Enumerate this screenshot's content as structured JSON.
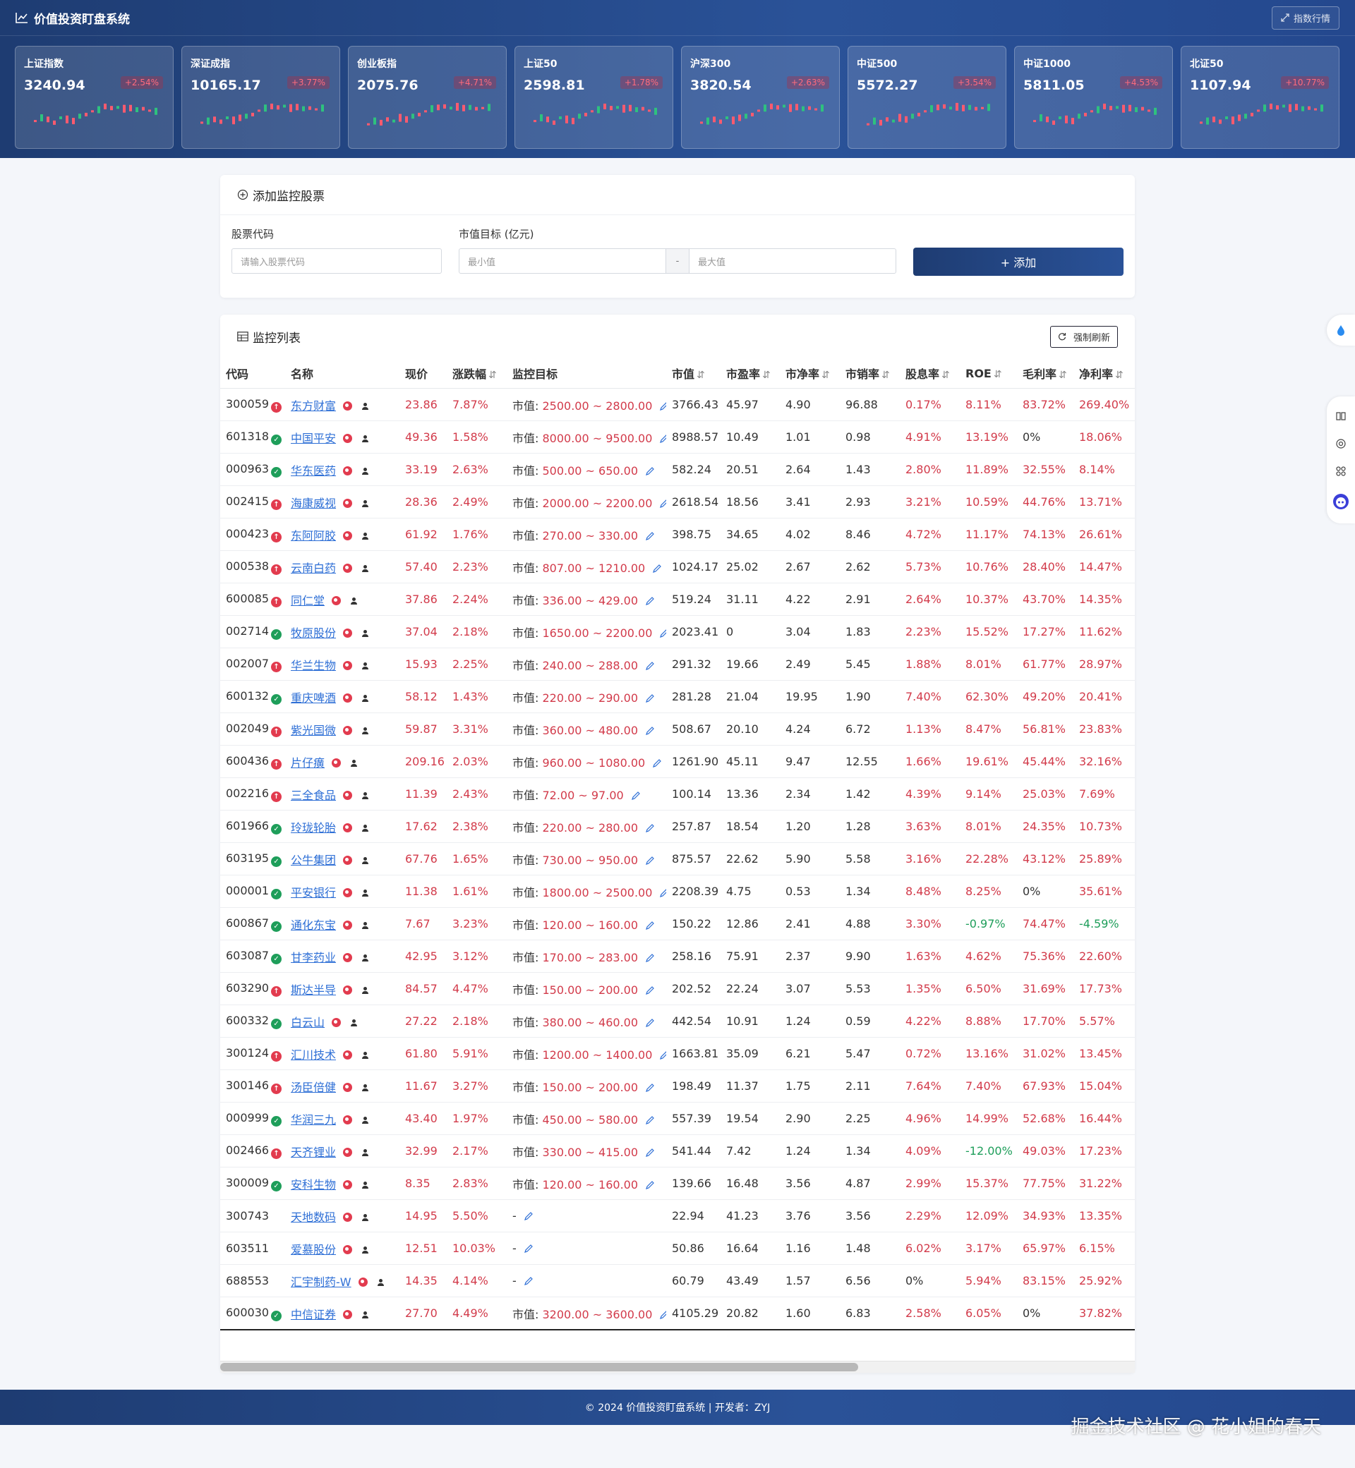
{
  "header": {
    "title": "价值投资盯盘系统",
    "index_button": "指数行情"
  },
  "index_cards": [
    {
      "name": "上证指数",
      "value": "3240.94",
      "change": "+2.54%"
    },
    {
      "name": "深证成指",
      "value": "10165.17",
      "change": "+3.77%"
    },
    {
      "name": "创业板指",
      "value": "2075.76",
      "change": "+4.71%"
    },
    {
      "name": "上证50",
      "value": "2598.81",
      "change": "+1.78%"
    },
    {
      "name": "沪深300",
      "value": "3820.54",
      "change": "+2.63%"
    },
    {
      "name": "中证500",
      "value": "5572.27",
      "change": "+3.54%"
    },
    {
      "name": "中证1000",
      "value": "5811.05",
      "change": "+4.53%"
    },
    {
      "name": "北证50",
      "value": "1107.94",
      "change": "+10.77%"
    }
  ],
  "add_form": {
    "title": "添加监控股票",
    "code_label": "股票代码",
    "code_placeholder": "请输入股票代码",
    "target_label": "市值目标 (亿元)",
    "min_placeholder": "最小值",
    "separator": "-",
    "max_placeholder": "最大值",
    "add_button": "+ 添加"
  },
  "list": {
    "title": "监控列表",
    "refresh_button": "强制刷新",
    "columns": [
      "代码",
      "名称",
      "现价",
      "涨跌幅",
      "监控目标",
      "市值",
      "市盈率",
      "市净率",
      "市销率",
      "股息率",
      "ROE",
      "毛利率",
      "净利率"
    ],
    "target_prefix": "市值: ",
    "rows": [
      {
        "code": "300059",
        "status": "up",
        "name": "东方财富",
        "price": "23.86",
        "change": "7.87%",
        "target": "2500.00 ~ 2800.00",
        "mcap": "3766.43",
        "pe": "45.97",
        "pb": "4.90",
        "ps": "96.88",
        "dy": "0.17%",
        "roe": "8.11%",
        "gm": "83.72%",
        "nm": "269.40%"
      },
      {
        "code": "601318",
        "status": "ok",
        "name": "中国平安",
        "price": "49.36",
        "change": "1.58%",
        "target": "8000.00 ~ 9500.00",
        "mcap": "8988.57",
        "pe": "10.49",
        "pb": "1.01",
        "ps": "0.98",
        "dy": "4.91%",
        "roe": "13.19%",
        "gm": "0%",
        "nm": "18.06%"
      },
      {
        "code": "000963",
        "status": "ok",
        "name": "华东医药",
        "price": "33.19",
        "change": "2.63%",
        "target": "500.00 ~ 650.00",
        "mcap": "582.24",
        "pe": "20.51",
        "pb": "2.64",
        "ps": "1.43",
        "dy": "2.80%",
        "roe": "11.89%",
        "gm": "32.55%",
        "nm": "8.14%"
      },
      {
        "code": "002415",
        "status": "up",
        "name": "海康威视",
        "price": "28.36",
        "change": "2.49%",
        "target": "2000.00 ~ 2200.00",
        "mcap": "2618.54",
        "pe": "18.56",
        "pb": "3.41",
        "ps": "2.93",
        "dy": "3.21%",
        "roe": "10.59%",
        "gm": "44.76%",
        "nm": "13.71%"
      },
      {
        "code": "000423",
        "status": "up",
        "name": "东阿阿胶",
        "price": "61.92",
        "change": "1.76%",
        "target": "270.00 ~ 330.00",
        "mcap": "398.75",
        "pe": "34.65",
        "pb": "4.02",
        "ps": "8.46",
        "dy": "4.72%",
        "roe": "11.17%",
        "gm": "74.13%",
        "nm": "26.61%"
      },
      {
        "code": "000538",
        "status": "up",
        "name": "云南白药",
        "price": "57.40",
        "change": "2.23%",
        "target": "807.00 ~ 1210.00",
        "mcap": "1024.17",
        "pe": "25.02",
        "pb": "2.67",
        "ps": "2.62",
        "dy": "5.73%",
        "roe": "10.76%",
        "gm": "28.40%",
        "nm": "14.47%"
      },
      {
        "code": "600085",
        "status": "up",
        "name": "同仁堂",
        "price": "37.86",
        "change": "2.24%",
        "target": "336.00 ~ 429.00",
        "mcap": "519.24",
        "pe": "31.11",
        "pb": "4.22",
        "ps": "2.91",
        "dy": "2.64%",
        "roe": "10.37%",
        "gm": "43.70%",
        "nm": "14.35%"
      },
      {
        "code": "002714",
        "status": "ok",
        "name": "牧原股份",
        "price": "37.04",
        "change": "2.18%",
        "target": "1650.00 ~ 2200.00",
        "mcap": "2023.41",
        "pe": "0",
        "pb": "3.04",
        "ps": "1.83",
        "dy": "2.23%",
        "roe": "15.52%",
        "gm": "17.27%",
        "nm": "11.62%"
      },
      {
        "code": "002007",
        "status": "up",
        "name": "华兰生物",
        "price": "15.93",
        "change": "2.25%",
        "target": "240.00 ~ 288.00",
        "mcap": "291.32",
        "pe": "19.66",
        "pb": "2.49",
        "ps": "5.45",
        "dy": "1.88%",
        "roe": "8.01%",
        "gm": "61.77%",
        "nm": "28.97%"
      },
      {
        "code": "600132",
        "status": "ok",
        "name": "重庆啤酒",
        "price": "58.12",
        "change": "1.43%",
        "target": "220.00 ~ 290.00",
        "mcap": "281.28",
        "pe": "21.04",
        "pb": "19.95",
        "ps": "1.90",
        "dy": "7.40%",
        "roe": "62.30%",
        "gm": "49.20%",
        "nm": "20.41%"
      },
      {
        "code": "002049",
        "status": "up",
        "name": "紫光国微",
        "price": "59.87",
        "change": "3.31%",
        "target": "360.00 ~ 480.00",
        "mcap": "508.67",
        "pe": "20.10",
        "pb": "4.24",
        "ps": "6.72",
        "dy": "1.13%",
        "roe": "8.47%",
        "gm": "56.81%",
        "nm": "23.83%"
      },
      {
        "code": "600436",
        "status": "up",
        "name": "片仔癀",
        "price": "209.16",
        "change": "2.03%",
        "target": "960.00 ~ 1080.00",
        "mcap": "1261.90",
        "pe": "45.11",
        "pb": "9.47",
        "ps": "12.55",
        "dy": "1.66%",
        "roe": "19.61%",
        "gm": "45.44%",
        "nm": "32.16%"
      },
      {
        "code": "002216",
        "status": "up",
        "name": "三全食品",
        "price": "11.39",
        "change": "2.43%",
        "target": "72.00 ~ 97.00",
        "mcap": "100.14",
        "pe": "13.36",
        "pb": "2.34",
        "ps": "1.42",
        "dy": "4.39%",
        "roe": "9.14%",
        "gm": "25.03%",
        "nm": "7.69%"
      },
      {
        "code": "601966",
        "status": "ok",
        "name": "玲珑轮胎",
        "price": "17.62",
        "change": "2.38%",
        "target": "220.00 ~ 280.00",
        "mcap": "257.87",
        "pe": "18.54",
        "pb": "1.20",
        "ps": "1.28",
        "dy": "3.63%",
        "roe": "8.01%",
        "gm": "24.35%",
        "nm": "10.73%"
      },
      {
        "code": "603195",
        "status": "ok",
        "name": "公牛集团",
        "price": "67.76",
        "change": "1.65%",
        "target": "730.00 ~ 950.00",
        "mcap": "875.57",
        "pe": "22.62",
        "pb": "5.90",
        "ps": "5.58",
        "dy": "3.16%",
        "roe": "22.28%",
        "gm": "43.12%",
        "nm": "25.89%"
      },
      {
        "code": "000001",
        "status": "ok",
        "name": "平安银行",
        "price": "11.38",
        "change": "1.61%",
        "target": "1800.00 ~ 2500.00",
        "mcap": "2208.39",
        "pe": "4.75",
        "pb": "0.53",
        "ps": "1.34",
        "dy": "8.48%",
        "roe": "8.25%",
        "gm": "0%",
        "nm": "35.61%"
      },
      {
        "code": "600867",
        "status": "ok",
        "name": "通化东宝",
        "price": "7.67",
        "change": "3.23%",
        "target": "120.00 ~ 160.00",
        "mcap": "150.22",
        "pe": "12.86",
        "pb": "2.41",
        "ps": "4.88",
        "dy": "3.30%",
        "roe": "-0.97%",
        "gm": "74.47%",
        "nm": "-4.59%"
      },
      {
        "code": "603087",
        "status": "ok",
        "name": "甘李药业",
        "price": "42.95",
        "change": "3.12%",
        "target": "170.00 ~ 283.00",
        "mcap": "258.16",
        "pe": "75.91",
        "pb": "2.37",
        "ps": "9.90",
        "dy": "1.63%",
        "roe": "4.62%",
        "gm": "75.36%",
        "nm": "22.60%"
      },
      {
        "code": "603290",
        "status": "up",
        "name": "斯达半导",
        "price": "84.57",
        "change": "4.47%",
        "target": "150.00 ~ 200.00",
        "mcap": "202.52",
        "pe": "22.24",
        "pb": "3.07",
        "ps": "5.53",
        "dy": "1.35%",
        "roe": "6.50%",
        "gm": "31.69%",
        "nm": "17.73%"
      },
      {
        "code": "600332",
        "status": "ok",
        "name": "白云山",
        "price": "27.22",
        "change": "2.18%",
        "target": "380.00 ~ 460.00",
        "mcap": "442.54",
        "pe": "10.91",
        "pb": "1.24",
        "ps": "0.59",
        "dy": "4.22%",
        "roe": "8.88%",
        "gm": "17.70%",
        "nm": "5.57%"
      },
      {
        "code": "300124",
        "status": "up",
        "name": "汇川技术",
        "price": "61.80",
        "change": "5.91%",
        "target": "1200.00 ~ 1400.00",
        "mcap": "1663.81",
        "pe": "35.09",
        "pb": "6.21",
        "ps": "5.47",
        "dy": "0.72%",
        "roe": "13.16%",
        "gm": "31.02%",
        "nm": "13.45%"
      },
      {
        "code": "300146",
        "status": "up",
        "name": "汤臣倍健",
        "price": "11.67",
        "change": "3.27%",
        "target": "150.00 ~ 200.00",
        "mcap": "198.49",
        "pe": "11.37",
        "pb": "1.75",
        "ps": "2.11",
        "dy": "7.64%",
        "roe": "7.40%",
        "gm": "67.93%",
        "nm": "15.04%"
      },
      {
        "code": "000999",
        "status": "ok",
        "name": "华润三九",
        "price": "43.40",
        "change": "1.97%",
        "target": "450.00 ~ 580.00",
        "mcap": "557.39",
        "pe": "19.54",
        "pb": "2.90",
        "ps": "2.25",
        "dy": "4.96%",
        "roe": "14.99%",
        "gm": "52.68%",
        "nm": "16.44%"
      },
      {
        "code": "002466",
        "status": "up",
        "name": "天齐锂业",
        "price": "32.99",
        "change": "2.17%",
        "target": "330.00 ~ 415.00",
        "mcap": "541.44",
        "pe": "7.42",
        "pb": "1.24",
        "ps": "1.34",
        "dy": "4.09%",
        "roe": "-12.00%",
        "gm": "49.03%",
        "nm": "17.23%"
      },
      {
        "code": "300009",
        "status": "ok",
        "name": "安科生物",
        "price": "8.35",
        "change": "2.83%",
        "target": "120.00 ~ 160.00",
        "mcap": "139.66",
        "pe": "16.48",
        "pb": "3.56",
        "ps": "4.87",
        "dy": "2.99%",
        "roe": "15.37%",
        "gm": "77.75%",
        "nm": "31.22%"
      },
      {
        "code": "300743",
        "status": "",
        "name": "天地数码",
        "price": "14.95",
        "change": "5.50%",
        "target": "",
        "mcap": "22.94",
        "pe": "41.23",
        "pb": "3.76",
        "ps": "3.56",
        "dy": "2.29%",
        "roe": "12.09%",
        "gm": "34.93%",
        "nm": "13.35%"
      },
      {
        "code": "603511",
        "status": "",
        "name": "爱慕股份",
        "price": "12.51",
        "change": "10.03%",
        "target": "",
        "mcap": "50.86",
        "pe": "16.64",
        "pb": "1.16",
        "ps": "1.48",
        "dy": "6.02%",
        "roe": "3.17%",
        "gm": "65.97%",
        "nm": "6.15%"
      },
      {
        "code": "688553",
        "status": "",
        "name": "汇宇制药-W",
        "price": "14.35",
        "change": "4.14%",
        "target": "",
        "mcap": "60.79",
        "pe": "43.49",
        "pb": "1.57",
        "ps": "6.56",
        "dy": "0%",
        "roe": "5.94%",
        "gm": "83.15%",
        "nm": "25.92%"
      },
      {
        "code": "600030",
        "status": "ok",
        "name": "中信证券",
        "price": "27.70",
        "change": "4.49%",
        "target": "3200.00 ~ 3600.00",
        "mcap": "4105.29",
        "pe": "20.82",
        "pb": "1.60",
        "ps": "6.83",
        "dy": "2.58%",
        "roe": "6.05%",
        "gm": "0%",
        "nm": "37.82%"
      }
    ]
  },
  "footer": {
    "text": "© 2024 价值投资盯盘系统 | 开发者：ZYJ",
    "watermark": "掘金技术社区 @ 花小姐的春天"
  },
  "colors": {
    "accent": "#1e3c72",
    "up": "#d23a4a",
    "down": "#1e9e5a",
    "link": "#2e6fd6"
  }
}
